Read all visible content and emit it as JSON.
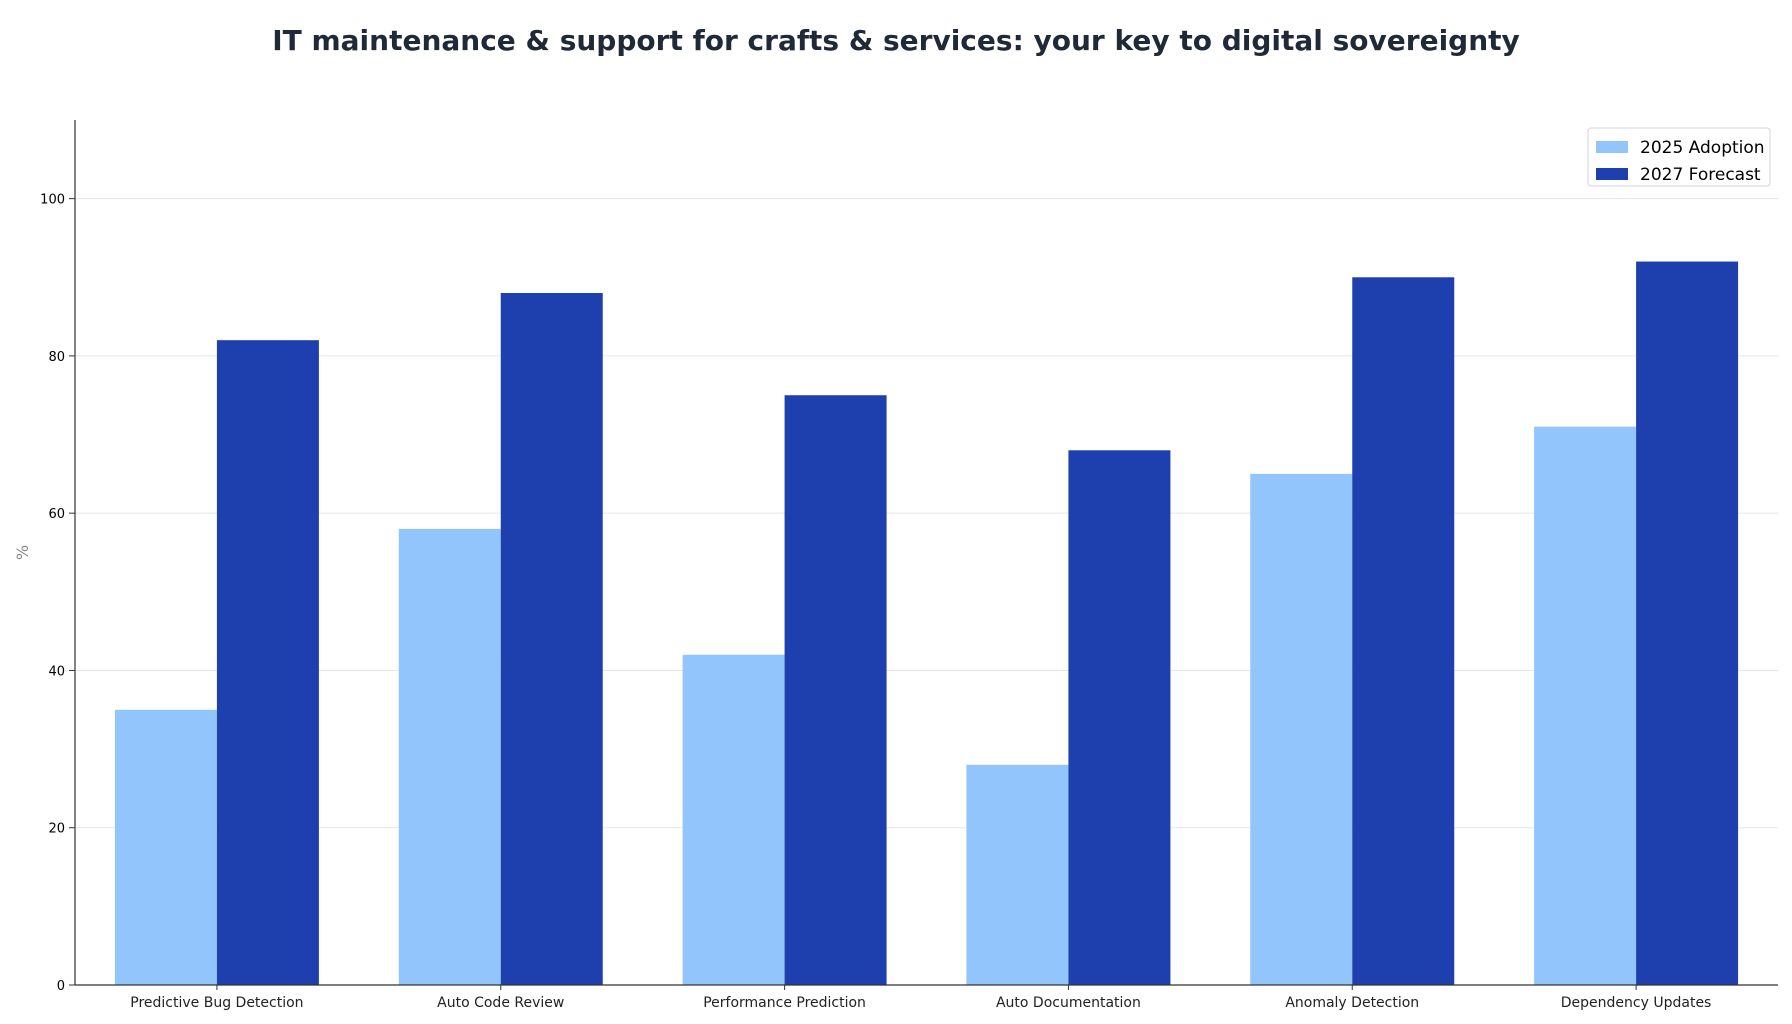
{
  "chart_data": {
    "type": "bar",
    "title": "IT maintenance & support for crafts & services: your key to digital sovereignty",
    "xlabel": "",
    "ylabel": "%",
    "ylim": [
      0,
      110
    ],
    "yticks": [
      0,
      20,
      40,
      60,
      80,
      100
    ],
    "grid": true,
    "legend_position": "top-right",
    "categories": [
      "Predictive Bug Detection",
      "Auto Code Review",
      "Performance Prediction",
      "Auto Documentation",
      "Anomaly Detection",
      "Dependency Updates"
    ],
    "series": [
      {
        "name": "2025 Adoption",
        "color": "#93c5fd",
        "values": [
          35,
          58,
          42,
          28,
          65,
          71
        ]
      },
      {
        "name": "2027 Forecast",
        "color": "#1e40af",
        "values": [
          82,
          88,
          75,
          68,
          90,
          92
        ]
      }
    ]
  }
}
